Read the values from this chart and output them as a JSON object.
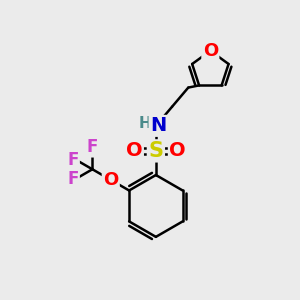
{
  "bg_color": "#ebebeb",
  "bond_color": "#000000",
  "atom_colors": {
    "O": "#ff0000",
    "N": "#0000cd",
    "S": "#cccc00",
    "F": "#cc44cc",
    "H": "#4a8a8a",
    "C": "#000000"
  },
  "bond_width": 1.8,
  "font_size_large": 13,
  "font_size_small": 11
}
